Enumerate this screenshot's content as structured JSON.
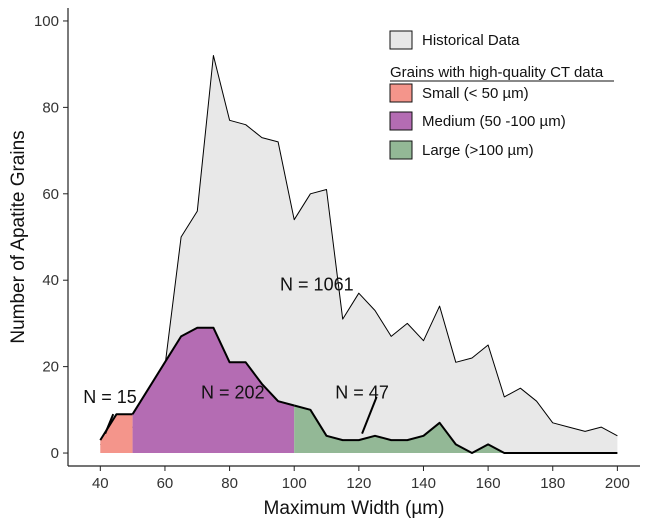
{
  "chart_data": {
    "type": "area",
    "xlabel": "Maximum Width (µm)",
    "ylabel": "Number of Apatite Grains",
    "xlim": [
      30,
      207
    ],
    "ylim": [
      -3,
      103
    ],
    "xticks": [
      40,
      60,
      80,
      100,
      120,
      140,
      160,
      180,
      200
    ],
    "yticks": [
      0,
      20,
      40,
      60,
      80,
      100
    ],
    "grid": false,
    "legend_position": "top-right",
    "legend_subheading": "Grains with high-quality CT data",
    "colors": {
      "historical": "#e8e8e8",
      "small": "#f4958b",
      "medium": "#b46cb3",
      "large": "#93b896",
      "line": "#000000"
    },
    "series": [
      {
        "name": "Historical Data",
        "key": "historical",
        "x": [
          40,
          45,
          50,
          55,
          60,
          65,
          70,
          75,
          80,
          85,
          90,
          95,
          100,
          105,
          110,
          115,
          120,
          125,
          130,
          135,
          140,
          145,
          150,
          155,
          160,
          165,
          170,
          175,
          180,
          185,
          190,
          195,
          200
        ],
        "values": [
          2,
          1,
          6,
          5,
          20,
          50,
          56,
          92,
          77,
          76,
          73,
          72,
          54,
          60,
          61,
          31,
          37,
          33,
          27,
          30,
          26,
          34,
          21,
          22,
          25,
          13,
          15,
          12,
          7,
          6,
          5,
          6,
          4
        ]
      },
      {
        "name": "Small (< 50 µm)",
        "key": "small",
        "x": [
          40,
          45,
          50
        ],
        "values": [
          3,
          9,
          9
        ]
      },
      {
        "name": "Medium (50 -100 µm)",
        "key": "medium",
        "x": [
          50,
          55,
          60,
          65,
          70,
          75,
          80,
          85,
          90,
          95,
          100
        ],
        "values": [
          9,
          15,
          21,
          27,
          29,
          29,
          21,
          21,
          16,
          12,
          11
        ]
      },
      {
        "name": "Large (>100 µm)",
        "key": "large",
        "x": [
          100,
          105,
          110,
          115,
          120,
          125,
          130,
          135,
          140,
          145,
          150,
          155,
          160,
          165,
          170,
          175,
          180,
          185,
          190,
          195,
          200
        ],
        "values": [
          11,
          10,
          4,
          3,
          3,
          4,
          3,
          3,
          4,
          7,
          2,
          0,
          2,
          0,
          0,
          0,
          0,
          0,
          0,
          0,
          0
        ]
      }
    ],
    "annotations": [
      {
        "text": "N = 1061",
        "x": 107,
        "y": 39
      },
      {
        "text": "N = 202",
        "x": 81,
        "y": 14
      },
      {
        "text": "N = 47",
        "x": 121,
        "y": 14
      },
      {
        "text": "N = 15",
        "x": 43,
        "y": 13
      }
    ]
  }
}
